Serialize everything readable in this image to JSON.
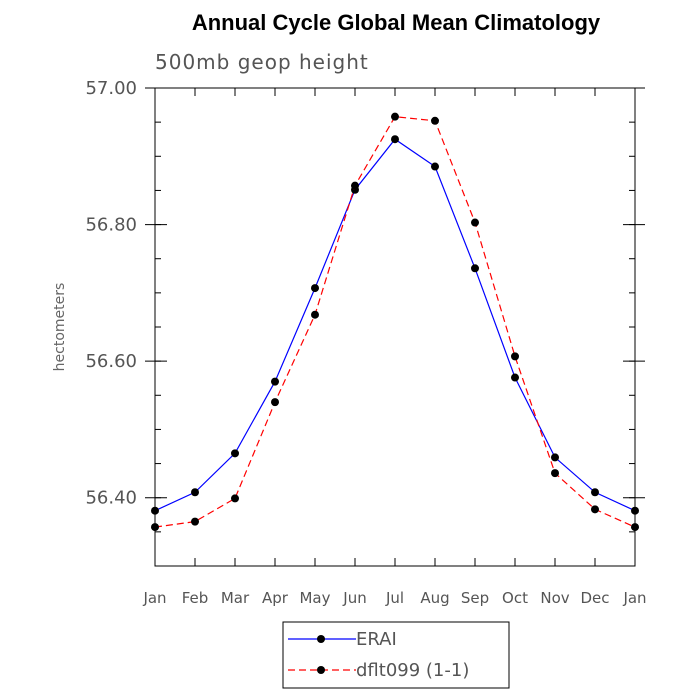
{
  "chart_data": {
    "type": "line",
    "title": "Annual Cycle Global Mean Climatology",
    "subtitle": "500mb geop height",
    "ylabel": "hectometers",
    "xlabel": "",
    "categories": [
      "Jan",
      "Feb",
      "Mar",
      "Apr",
      "May",
      "Jun",
      "Jul",
      "Aug",
      "Sep",
      "Oct",
      "Nov",
      "Dec",
      "Jan"
    ],
    "ylim": [
      56.3,
      57.0
    ],
    "yticks": [
      56.4,
      56.6,
      56.8,
      57.0
    ],
    "ytick_labels": [
      "56.40",
      "56.60",
      "56.80",
      "57.00"
    ],
    "yminor_step": 0.05,
    "series": [
      {
        "name": "ERAI",
        "color": "#0000ff",
        "dash": "solid",
        "values": [
          56.381,
          56.408,
          56.465,
          56.57,
          56.707,
          56.851,
          56.925,
          56.885,
          56.736,
          56.576,
          56.459,
          56.408,
          56.381
        ]
      },
      {
        "name": "dflt099 (1-1)",
        "color": "#ff0000",
        "dash": "dashed",
        "values": [
          56.357,
          56.365,
          56.399,
          56.54,
          56.668,
          56.857,
          56.958,
          56.952,
          56.803,
          56.607,
          56.436,
          56.383,
          56.357
        ]
      }
    ],
    "legend_position": "bottom-center"
  }
}
